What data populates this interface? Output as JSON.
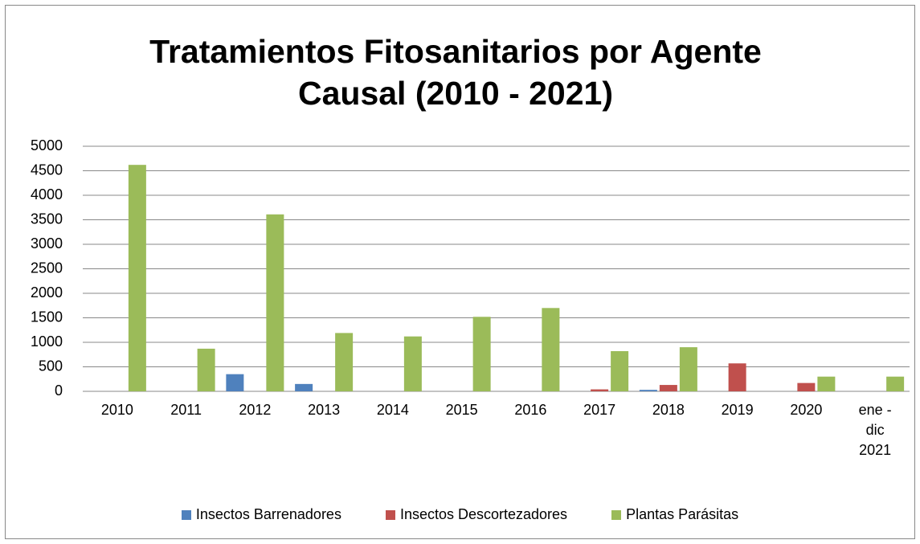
{
  "chart_data": {
    "type": "bar",
    "title": "Tratamientos Fitosanitarios por Agente Causal (2010 - 2021)",
    "categories": [
      "2010",
      "2011",
      "2012",
      "2013",
      "2014",
      "2015",
      "2016",
      "2017",
      "2018",
      "2019",
      "2020",
      "ene - dic 2021"
    ],
    "series": [
      {
        "name": "Insectos Barrenadores",
        "color": "#4f81bd",
        "values": [
          0,
          0,
          350,
          150,
          0,
          0,
          0,
          0,
          30,
          0,
          0,
          0
        ]
      },
      {
        "name": "Insectos Descortezadores",
        "color": "#c0504d",
        "values": [
          0,
          0,
          0,
          0,
          0,
          0,
          0,
          40,
          130,
          570,
          170,
          0
        ]
      },
      {
        "name": "Plantas Parásitas",
        "color": "#9bbb59",
        "values": [
          4620,
          870,
          3610,
          1190,
          1120,
          1520,
          1700,
          820,
          900,
          0,
          300,
          300
        ]
      }
    ],
    "ylim": [
      0,
      5000
    ],
    "yticks": [
      0,
      500,
      1000,
      1500,
      2000,
      2500,
      3000,
      3500,
      4000,
      4500,
      5000
    ],
    "grid": true,
    "legend": "bottom"
  }
}
